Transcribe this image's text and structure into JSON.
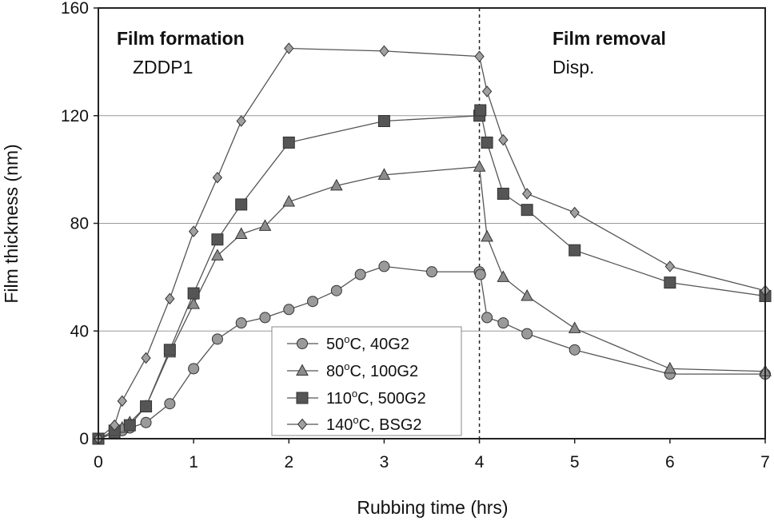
{
  "chart_data": {
    "type": "line",
    "title": "",
    "xlabel": "Rubbing time (hrs)",
    "ylabel": "Film thickness (nm)",
    "xlim": [
      0,
      7
    ],
    "ylim": [
      0,
      160
    ],
    "xticks": [
      "0",
      "1",
      "2",
      "3",
      "4",
      "5",
      "6",
      "7"
    ],
    "yticks": [
      "0",
      "40",
      "80",
      "120",
      "160"
    ],
    "grid": "horizontal",
    "divider_x": 4,
    "annotations": {
      "left_title": "Film formation",
      "left_sub": "ZDDP1",
      "right_title": "Film removal",
      "right_sub": "Disp."
    },
    "legend_position": "bottom-center",
    "series": [
      {
        "name": "50°C, 40G2",
        "legend_text": "50",
        "legend_sup": "o",
        "legend_rest": "C, 40G2",
        "marker": "circle",
        "color": "#9a9a9a",
        "x": [
          0,
          0.17,
          0.25,
          0.33,
          0.5,
          0.75,
          1.0,
          1.25,
          1.5,
          1.75,
          2.0,
          2.25,
          2.5,
          2.75,
          3.0,
          3.5,
          4.0,
          4.01,
          4.08,
          4.25,
          4.5,
          5.0,
          6.0,
          7.0
        ],
        "y": [
          0,
          2,
          3,
          4,
          6,
          13,
          26,
          37,
          43,
          45,
          48,
          51,
          55,
          61,
          64,
          62,
          62,
          61,
          45,
          43,
          39,
          33,
          24,
          24
        ]
      },
      {
        "name": "80°C, 100G2",
        "legend_text": "80",
        "legend_sup": "o",
        "legend_rest": "C, 100G2",
        "marker": "triangle",
        "color": "#8c8c8c",
        "x": [
          0,
          0.17,
          0.25,
          0.33,
          0.5,
          0.75,
          1.0,
          1.25,
          1.5,
          1.75,
          2.0,
          2.5,
          3.0,
          4.0,
          4.08,
          4.25,
          4.5,
          5.0,
          6.0,
          7.0
        ],
        "y": [
          0,
          2,
          4,
          6,
          12,
          32,
          50,
          68,
          76,
          79,
          88,
          94,
          98,
          101,
          75,
          60,
          53,
          41,
          26,
          25
        ]
      },
      {
        "name": "110°C, 500G2",
        "legend_text": "110",
        "legend_sup": "o",
        "legend_rest": "C, 500G2",
        "marker": "square",
        "color": "#555555",
        "x": [
          0,
          0.17,
          0.33,
          0.5,
          0.75,
          1.0,
          1.25,
          1.5,
          2.0,
          3.0,
          4.0,
          4.01,
          4.08,
          4.25,
          4.5,
          5.0,
          6.0,
          7.0
        ],
        "y": [
          0,
          3,
          5,
          12,
          33,
          54,
          74,
          87,
          110,
          118,
          120,
          122,
          110,
          91,
          85,
          70,
          58,
          53
        ]
      },
      {
        "name": "140°C, BSG2",
        "legend_text": "140",
        "legend_sup": "o",
        "legend_rest": "C, BSG2",
        "marker": "diamond",
        "color": "#a0a0a0",
        "x": [
          0,
          0.17,
          0.25,
          0.5,
          0.75,
          1.0,
          1.25,
          1.5,
          2.0,
          3.0,
          4.0,
          4.08,
          4.25,
          4.5,
          5.0,
          6.0,
          7.0
        ],
        "y": [
          0,
          5,
          14,
          30,
          52,
          77,
          97,
          118,
          145,
          144,
          142,
          129,
          111,
          91,
          84,
          64,
          55
        ]
      }
    ]
  }
}
